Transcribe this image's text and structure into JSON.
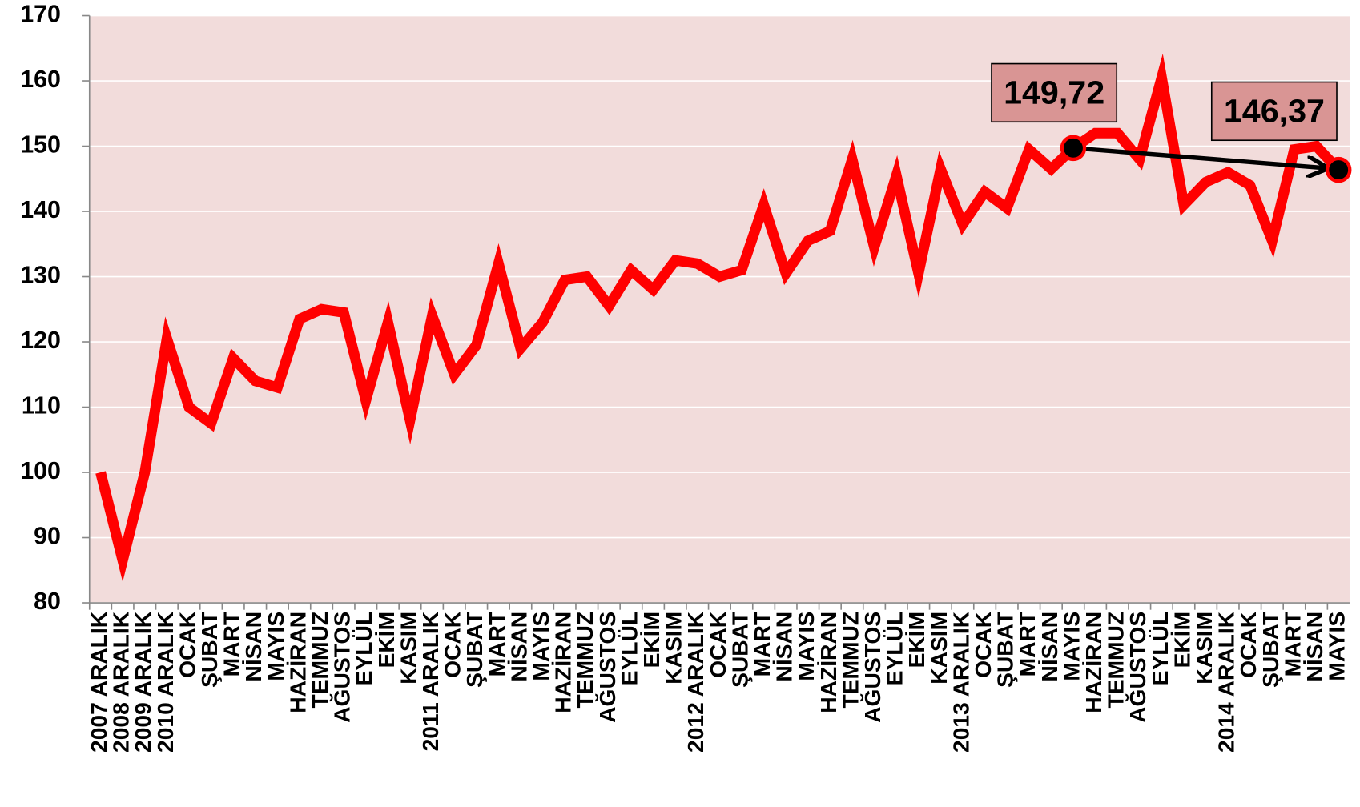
{
  "chart_data": {
    "type": "line",
    "categories": [
      "2007 ARALIK",
      "2008 ARALIK",
      "2009 ARALIK",
      "2010 ARALIK",
      "OCAK",
      "ŞUBAT",
      "MART",
      "NİSAN",
      "MAYIS",
      "HAZİRAN",
      "TEMMUZ",
      "AĞUSTOS",
      "EYLÜL",
      "EKİM",
      "KASIM",
      "2011 ARALIK",
      "OCAK",
      "ŞUBAT",
      "MART",
      "NİSAN",
      "MAYIS",
      "HAZİRAN",
      "TEMMUZ",
      "AĞUSTOS",
      "EYLÜL",
      "EKİM",
      "KASIM",
      "2012 ARALIK",
      "OCAK",
      "ŞUBAT",
      "MART",
      "NİSAN",
      "MAYIS",
      "HAZİRAN",
      "TEMMUZ",
      "AĞUSTOS",
      "EYLÜL",
      "EKİM",
      "KASIM",
      "2013 ARALIK",
      "OCAK",
      "ŞUBAT",
      "MART",
      "NİSAN",
      "MAYIS",
      "HAZİRAN",
      "TEMMUZ",
      "AĞUSTOS",
      "EYLÜL",
      "EKİM",
      "KASIM",
      "2014 ARALIK",
      "OCAK",
      "ŞUBAT",
      "MART",
      "NİSAN",
      "MAYIS"
    ],
    "values": [
      100,
      86.5,
      100,
      120.5,
      110,
      107.5,
      117.5,
      114,
      113,
      123.5,
      125,
      124.5,
      111,
      123,
      108,
      124,
      115,
      119.5,
      132,
      119,
      123,
      129.5,
      130,
      125.5,
      131,
      128,
      132.5,
      132,
      130,
      131,
      141,
      130.5,
      135.5,
      137,
      148,
      134.5,
      145.5,
      130.5,
      146.5,
      138,
      143,
      140.5,
      149.5,
      146.5,
      149.72,
      152,
      152,
      148,
      160.5,
      141,
      144.5,
      146,
      144,
      135.5,
      149.5,
      150,
      146.37
    ],
    "value_labels": [
      null,
      null,
      null,
      null,
      null,
      null,
      null,
      null,
      null,
      null,
      null,
      null,
      null,
      null,
      null,
      null,
      null,
      null,
      null,
      null,
      null,
      null,
      null,
      null,
      null,
      null,
      null,
      null,
      null,
      null,
      null,
      null,
      null,
      null,
      null,
      null,
      null,
      null,
      null,
      null,
      null,
      null,
      null,
      null,
      "149,72",
      null,
      null,
      null,
      null,
      null,
      null,
      null,
      null,
      null,
      null,
      null,
      "146,37"
    ],
    "color": "#ff0000",
    "ylim": [
      80,
      170
    ],
    "yticks": [
      80,
      90,
      100,
      110,
      120,
      130,
      140,
      150,
      160,
      170
    ],
    "grid": true
  }
}
